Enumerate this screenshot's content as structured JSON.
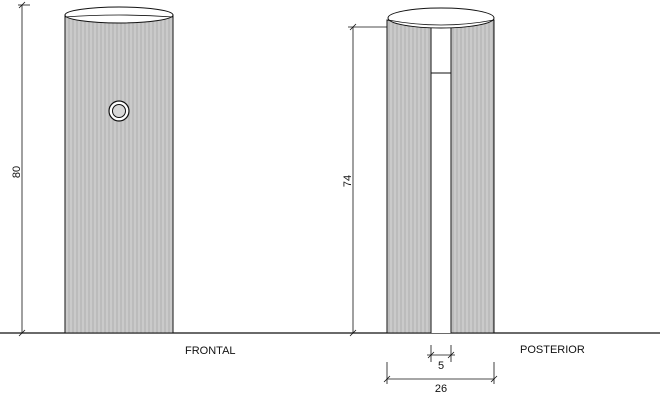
{
  "views": {
    "front": {
      "label": "FRONTAL",
      "height_value": "80"
    },
    "rear": {
      "label": "POSTERIOR",
      "height_value": "74",
      "gap_value": "5",
      "width_value": "26"
    }
  },
  "colors": {
    "body_fill": "#d2d2d2",
    "stripe": "#9a9a9a",
    "line": "#111111"
  },
  "icons": [
    "round-port-icon"
  ]
}
